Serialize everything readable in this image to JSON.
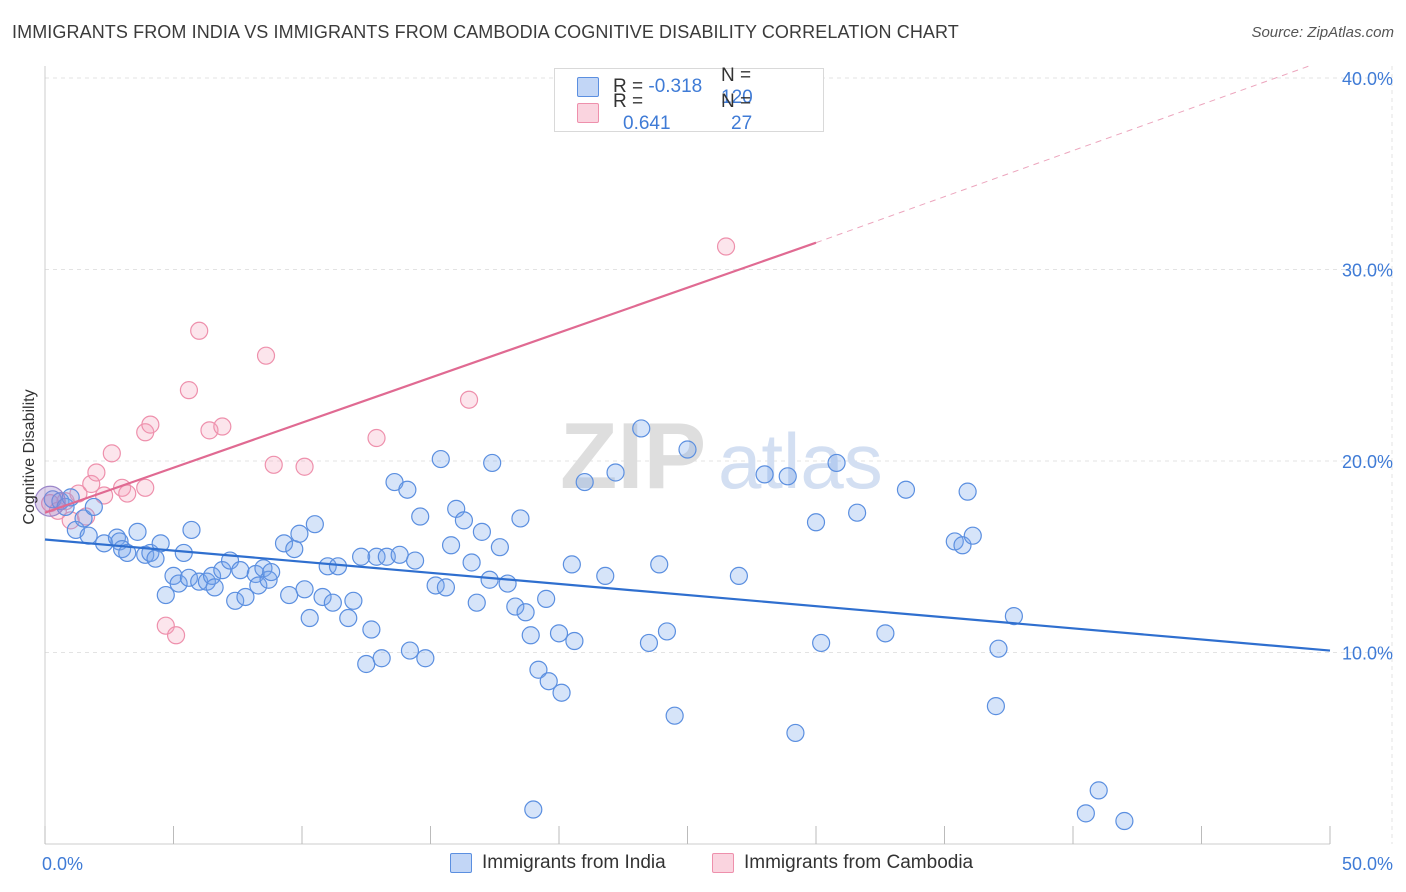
{
  "title": "IMMIGRANTS FROM INDIA VS IMMIGRANTS FROM CAMBODIA COGNITIVE DISABILITY CORRELATION CHART",
  "source": "Source: ZipAtlas.com",
  "legend_top": {
    "rows": [
      {
        "r_label": "R = ",
        "r_value": "-0.318",
        "n_label": "N = ",
        "n_value": "120"
      },
      {
        "r_label": "R = ",
        "r_value": "0.641",
        "n_label": "N = ",
        "n_value": "27"
      }
    ]
  },
  "colors": {
    "india": "#5b8fe0",
    "india_fill": "rgba(120,165,235,0.30)",
    "india_line": "#2f6fcf",
    "cambodia": "#ee90ac",
    "cambodia_fill": "rgba(245,160,185,0.28)",
    "cambodia_line": "#e06a92",
    "axis_label": "#3f7bd6",
    "grid": "#e3e3e3"
  },
  "watermark": {
    "zip": "ZIP",
    "atlas": "atlas"
  },
  "chart_data": {
    "type": "scatter",
    "title": "IMMIGRANTS FROM INDIA VS IMMIGRANTS FROM CAMBODIA COGNITIVE DISABILITY CORRELATION CHART",
    "xlabel": "",
    "ylabel": "Cognitive Disability",
    "xlim": [
      0,
      50
    ],
    "ylim": [
      0,
      40
    ],
    "x_tick_labels": [
      "0.0%",
      "50.0%"
    ],
    "y_ticks": [
      10,
      20,
      30,
      40
    ],
    "y_tick_labels": [
      "10.0%",
      "20.0%",
      "30.0%",
      "40.0%"
    ],
    "grid": true,
    "legend_position": "bottom",
    "series": [
      {
        "name": "Immigrants from India",
        "r": -0.318,
        "n": 120,
        "trend": {
          "x0": 0,
          "y0": 15.9,
          "x1": 50,
          "y1": 10.1,
          "dashed_from": null
        },
        "points": [
          [
            0.3,
            18.0
          ],
          [
            0.6,
            17.9
          ],
          [
            0.8,
            17.6
          ],
          [
            1.0,
            18.1
          ],
          [
            1.2,
            16.4
          ],
          [
            1.5,
            17.0
          ],
          [
            1.7,
            16.1
          ],
          [
            1.9,
            17.6
          ],
          [
            2.3,
            15.7
          ],
          [
            2.8,
            16.0
          ],
          [
            2.9,
            15.8
          ],
          [
            3.0,
            15.4
          ],
          [
            3.2,
            15.2
          ],
          [
            3.6,
            16.3
          ],
          [
            3.9,
            15.1
          ],
          [
            4.1,
            15.2
          ],
          [
            4.3,
            14.9
          ],
          [
            4.5,
            15.7
          ],
          [
            4.7,
            13.0
          ],
          [
            5.0,
            14.0
          ],
          [
            5.2,
            13.6
          ],
          [
            5.4,
            15.2
          ],
          [
            5.6,
            13.9
          ],
          [
            5.7,
            16.4
          ],
          [
            6.0,
            13.7
          ],
          [
            6.3,
            13.7
          ],
          [
            6.5,
            14.0
          ],
          [
            6.6,
            13.4
          ],
          [
            6.9,
            14.3
          ],
          [
            7.2,
            14.8
          ],
          [
            7.4,
            12.7
          ],
          [
            7.6,
            14.3
          ],
          [
            7.8,
            12.9
          ],
          [
            8.2,
            14.1
          ],
          [
            8.3,
            13.5
          ],
          [
            8.5,
            14.4
          ],
          [
            8.7,
            13.8
          ],
          [
            8.8,
            14.2
          ],
          [
            9.3,
            15.7
          ],
          [
            9.5,
            13.0
          ],
          [
            9.7,
            15.4
          ],
          [
            9.9,
            16.2
          ],
          [
            10.1,
            13.3
          ],
          [
            10.3,
            11.8
          ],
          [
            10.5,
            16.7
          ],
          [
            10.8,
            12.9
          ],
          [
            11.0,
            14.5
          ],
          [
            11.2,
            12.6
          ],
          [
            11.4,
            14.5
          ],
          [
            11.8,
            11.8
          ],
          [
            12.0,
            12.7
          ],
          [
            12.3,
            15.0
          ],
          [
            12.5,
            9.4
          ],
          [
            12.7,
            11.2
          ],
          [
            12.9,
            15.0
          ],
          [
            13.1,
            9.7
          ],
          [
            13.3,
            15.0
          ],
          [
            13.6,
            18.9
          ],
          [
            13.8,
            15.1
          ],
          [
            14.1,
            18.5
          ],
          [
            14.2,
            10.1
          ],
          [
            14.4,
            14.8
          ],
          [
            14.6,
            17.1
          ],
          [
            14.8,
            9.7
          ],
          [
            15.2,
            13.5
          ],
          [
            15.4,
            20.1
          ],
          [
            15.6,
            13.4
          ],
          [
            15.8,
            15.6
          ],
          [
            16.0,
            17.5
          ],
          [
            16.3,
            16.9
          ],
          [
            16.6,
            14.7
          ],
          [
            16.8,
            12.6
          ],
          [
            17.0,
            16.3
          ],
          [
            17.3,
            13.8
          ],
          [
            17.4,
            19.9
          ],
          [
            17.7,
            15.5
          ],
          [
            18.0,
            13.6
          ],
          [
            18.3,
            12.4
          ],
          [
            18.5,
            17.0
          ],
          [
            18.7,
            12.1
          ],
          [
            18.9,
            10.9
          ],
          [
            19.2,
            9.1
          ],
          [
            19.5,
            12.8
          ],
          [
            19.6,
            8.5
          ],
          [
            20.0,
            11.0
          ],
          [
            20.1,
            7.9
          ],
          [
            20.5,
            14.6
          ],
          [
            20.6,
            10.6
          ],
          [
            21.0,
            18.9
          ],
          [
            21.8,
            14.0
          ],
          [
            22.2,
            19.4
          ],
          [
            23.2,
            21.7
          ],
          [
            23.5,
            10.5
          ],
          [
            23.9,
            14.6
          ],
          [
            24.2,
            11.1
          ],
          [
            24.5,
            6.7
          ],
          [
            25.0,
            20.6
          ],
          [
            27.0,
            14.0
          ],
          [
            28.0,
            19.3
          ],
          [
            28.9,
            19.2
          ],
          [
            29.2,
            5.8
          ],
          [
            30.0,
            16.8
          ],
          [
            30.2,
            10.5
          ],
          [
            30.8,
            19.9
          ],
          [
            31.6,
            17.3
          ],
          [
            32.7,
            11.0
          ],
          [
            33.5,
            18.5
          ],
          [
            35.4,
            15.8
          ],
          [
            35.7,
            15.6
          ],
          [
            35.9,
            18.4
          ],
          [
            36.1,
            16.1
          ],
          [
            37.0,
            7.2
          ],
          [
            37.1,
            10.2
          ],
          [
            37.7,
            11.9
          ],
          [
            40.5,
            1.6
          ],
          [
            41.0,
            2.8
          ],
          [
            42.0,
            1.2
          ],
          [
            19.0,
            1.8
          ]
        ]
      },
      {
        "name": "Immigrants from Cambodia",
        "r": 0.641,
        "n": 27,
        "trend": {
          "x0": 0,
          "y0": 17.3,
          "x1": 50,
          "y1": 40.8,
          "solid_to": 30
        },
        "points": [
          [
            0.2,
            17.8
          ],
          [
            0.5,
            17.4
          ],
          [
            0.8,
            17.9
          ],
          [
            1.0,
            16.9
          ],
          [
            1.3,
            18.3
          ],
          [
            1.6,
            17.1
          ],
          [
            1.8,
            18.8
          ],
          [
            2.0,
            19.4
          ],
          [
            2.3,
            18.2
          ],
          [
            2.6,
            20.4
          ],
          [
            3.0,
            18.6
          ],
          [
            3.2,
            18.3
          ],
          [
            3.9,
            18.6
          ],
          [
            3.9,
            21.5
          ],
          [
            4.1,
            21.9
          ],
          [
            4.7,
            11.4
          ],
          [
            5.1,
            10.9
          ],
          [
            5.6,
            23.7
          ],
          [
            6.0,
            26.8
          ],
          [
            6.4,
            21.6
          ],
          [
            6.9,
            21.8
          ],
          [
            8.6,
            25.5
          ],
          [
            8.9,
            19.8
          ],
          [
            10.1,
            19.7
          ],
          [
            12.9,
            21.2
          ],
          [
            16.5,
            23.2
          ],
          [
            26.5,
            31.2
          ]
        ]
      }
    ]
  }
}
